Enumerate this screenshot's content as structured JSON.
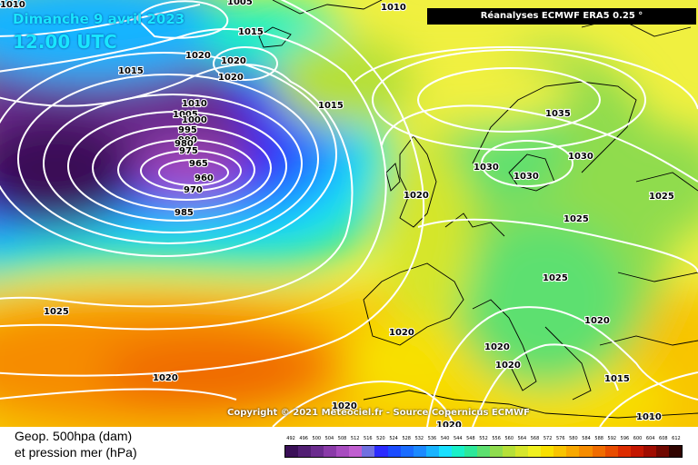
{
  "header": {
    "date": "Dimanche 9 avril 2023",
    "time": "12.00 UTC",
    "source": "Réanalyses ECMWF ERA5 0.25 °"
  },
  "copyright": "Copyright © 2021 Meteociel.fr - Source Copernicus ECMWF",
  "legend": {
    "line1": "Geop. 500hpa (dam)",
    "line2": "et pression mer (hPa)",
    "scale_values": [
      "492",
      "496",
      "500",
      "504",
      "508",
      "512",
      "516",
      "520",
      "524",
      "528",
      "532",
      "536",
      "540",
      "544",
      "548",
      "552",
      "556",
      "560",
      "564",
      "568",
      "572",
      "576",
      "580",
      "584",
      "588",
      "592",
      "596",
      "600",
      "604",
      "608",
      "612"
    ],
    "scale_colors": [
      "#3a0f57",
      "#521e73",
      "#6b2b8e",
      "#8a3aa8",
      "#a84cc0",
      "#c05ed0",
      "#7070e0",
      "#2b2bff",
      "#1b4cff",
      "#1a6cff",
      "#1c8aff",
      "#19b4ff",
      "#19e0ff",
      "#19f0c8",
      "#2de89a",
      "#5de070",
      "#8fdc4e",
      "#b6e038",
      "#d6e62c",
      "#f0f020",
      "#f8e000",
      "#f8c400",
      "#f8a800",
      "#f68c00",
      "#f06c00",
      "#e84c00",
      "#dc2c00",
      "#c41600",
      "#a00c00",
      "#700800",
      "#300400"
    ]
  },
  "isobar_labels": [
    "1010",
    "1005",
    "1015",
    "1020",
    "1020",
    "1020",
    "1015",
    "1010",
    "1005",
    "1000",
    "995",
    "990",
    "985",
    "980",
    "975",
    "970",
    "965",
    "960",
    "985",
    "1015",
    "1035",
    "1030",
    "1030",
    "1030",
    "1020",
    "1025",
    "1025",
    "1025",
    "1020",
    "1020",
    "1020",
    "1015",
    "1020",
    "1025",
    "1020",
    "1020",
    "1010"
  ],
  "colors": {
    "isobar": "#ffffff",
    "coast": "#000000"
  }
}
